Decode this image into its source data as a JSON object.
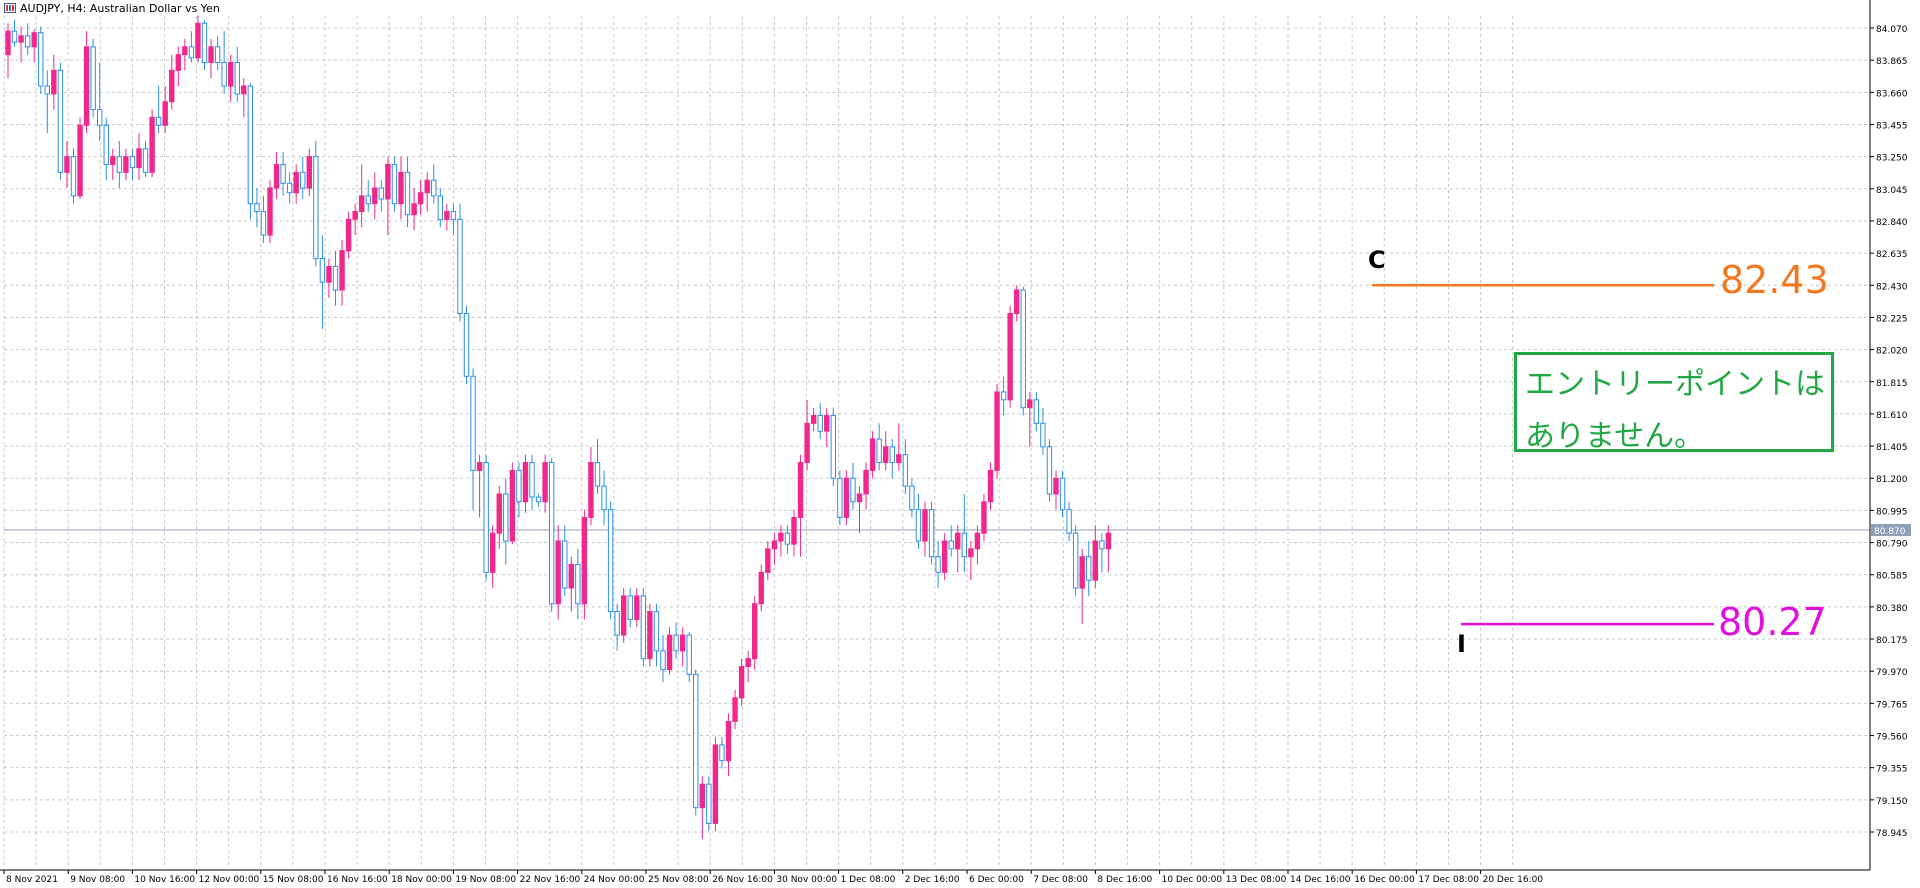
{
  "header": {
    "symbol_label": "AUDJPY, H4:  Australian Dollar vs Yen"
  },
  "colors": {
    "bull": "#f0288c",
    "bear": "#2e8fe8",
    "grid": "#c8c8c8",
    "upper_level": "#f07820",
    "lower_level": "#e010e0",
    "note_border": "#22a745"
  },
  "chart_data": {
    "type": "candlestick",
    "symbol": "AUDJPY",
    "timeframe": "H4",
    "y_range": [
      78.85,
      84.22
    ],
    "y_ticks": [
      "84.070",
      "83.865",
      "83.660",
      "83.455",
      "83.250",
      "83.045",
      "82.840",
      "82.635",
      "82.430",
      "82.225",
      "82.020",
      "81.815",
      "81.610",
      "81.405",
      "81.200",
      "80.995",
      "80.790",
      "80.585",
      "80.380",
      "80.175",
      "79.970",
      "79.765",
      "79.560",
      "79.355",
      "79.150",
      "78.945"
    ],
    "current_price": "80.870",
    "x_labels": [
      "8 Nov 2021",
      "9 Nov 08:00",
      "10 Nov 16:00",
      "12 Nov 00:00",
      "15 Nov 08:00",
      "16 Nov 16:00",
      "18 Nov 00:00",
      "19 Nov 08:00",
      "22 Nov 16:00",
      "24 Nov 00:00",
      "25 Nov 08:00",
      "26 Nov 16:00",
      "30 Nov 00:00",
      "1 Dec 08:00",
      "2 Dec 16:00",
      "6 Dec 00:00",
      "7 Dec 08:00",
      "8 Dec 16:00",
      "10 Dec 00:00",
      "13 Dec 08:00",
      "14 Dec 16:00",
      "16 Dec 00:00",
      "17 Dec 08:00",
      "20 Dec 16:00"
    ],
    "annotations": {
      "point_c": "C",
      "point_i": "I",
      "level_high": "82.43",
      "level_low": "80.27",
      "note_line1": "エントリーポイントは",
      "note_line2": "ありません。"
    },
    "levels": {
      "high": 82.43,
      "low": 80.27
    },
    "candles": [
      [
        83.9,
        84.1,
        83.75,
        84.05
      ],
      [
        84.05,
        84.12,
        83.95,
        83.98
      ],
      [
        83.98,
        84.08,
        83.85,
        84.02
      ],
      [
        84.02,
        84.1,
        83.9,
        83.95
      ],
      [
        83.95,
        84.06,
        83.85,
        84.04
      ],
      [
        84.04,
        84.08,
        83.65,
        83.7
      ],
      [
        83.7,
        83.8,
        83.4,
        83.65
      ],
      [
        83.65,
        83.9,
        83.55,
        83.8
      ],
      [
        83.8,
        83.85,
        83.1,
        83.15
      ],
      [
        83.15,
        83.35,
        83.05,
        83.25
      ],
      [
        83.25,
        83.3,
        82.95,
        83.0
      ],
      [
        83.0,
        83.5,
        82.98,
        83.45
      ],
      [
        83.45,
        84.05,
        83.4,
        83.95
      ],
      [
        83.95,
        84.0,
        83.5,
        83.55
      ],
      [
        83.55,
        83.85,
        83.35,
        83.45
      ],
      [
        83.45,
        83.5,
        83.1,
        83.2
      ],
      [
        83.2,
        83.3,
        83.1,
        83.25
      ],
      [
        83.25,
        83.35,
        83.05,
        83.15
      ],
      [
        83.15,
        83.3,
        83.1,
        83.25
      ],
      [
        83.25,
        83.3,
        83.1,
        83.18
      ],
      [
        83.18,
        83.4,
        83.1,
        83.3
      ],
      [
        83.3,
        83.35,
        83.12,
        83.15
      ],
      [
        83.15,
        83.55,
        83.12,
        83.5
      ],
      [
        83.5,
        83.7,
        83.4,
        83.45
      ],
      [
        83.45,
        83.7,
        83.4,
        83.6
      ],
      [
        83.6,
        83.9,
        83.55,
        83.8
      ],
      [
        83.8,
        83.95,
        83.7,
        83.9
      ],
      [
        83.9,
        84.0,
        83.8,
        83.95
      ],
      [
        83.95,
        84.05,
        83.85,
        83.88
      ],
      [
        83.88,
        84.15,
        83.85,
        84.1
      ],
      [
        84.1,
        84.12,
        83.8,
        83.85
      ],
      [
        83.85,
        84.0,
        83.75,
        83.95
      ],
      [
        83.95,
        84.02,
        83.8,
        83.85
      ],
      [
        83.85,
        84.05,
        83.65,
        83.7
      ],
      [
        83.7,
        83.9,
        83.6,
        83.85
      ],
      [
        83.85,
        83.95,
        83.6,
        83.65
      ],
      [
        83.65,
        83.75,
        83.5,
        83.7
      ],
      [
        83.7,
        83.72,
        82.85,
        82.95
      ],
      [
        82.95,
        83.05,
        82.8,
        82.9
      ],
      [
        82.9,
        83.0,
        82.7,
        82.75
      ],
      [
        82.75,
        83.1,
        82.7,
        83.05
      ],
      [
        83.05,
        83.28,
        82.98,
        83.2
      ],
      [
        83.2,
        83.28,
        83.0,
        83.08
      ],
      [
        83.08,
        83.15,
        82.95,
        83.02
      ],
      [
        83.02,
        83.2,
        82.95,
        83.15
      ],
      [
        83.15,
        83.25,
        82.98,
        83.05
      ],
      [
        83.05,
        83.3,
        83.0,
        83.25
      ],
      [
        83.25,
        83.35,
        82.55,
        82.6
      ],
      [
        82.6,
        82.75,
        82.15,
        82.45
      ],
      [
        82.45,
        82.6,
        82.35,
        82.55
      ],
      [
        82.55,
        82.65,
        82.3,
        82.4
      ],
      [
        82.4,
        82.72,
        82.3,
        82.65
      ],
      [
        82.65,
        82.9,
        82.6,
        82.85
      ],
      [
        82.85,
        82.95,
        82.75,
        82.9
      ],
      [
        82.9,
        83.2,
        82.8,
        83.0
      ],
      [
        83.0,
        83.1,
        82.9,
        82.95
      ],
      [
        82.95,
        83.15,
        82.85,
        83.05
      ],
      [
        83.05,
        83.1,
        82.9,
        82.98
      ],
      [
        82.98,
        83.25,
        82.75,
        83.2
      ],
      [
        83.2,
        83.25,
        82.9,
        82.95
      ],
      [
        82.95,
        83.25,
        82.85,
        83.15
      ],
      [
        83.15,
        83.25,
        82.8,
        82.88
      ],
      [
        82.88,
        83.05,
        82.78,
        82.95
      ],
      [
        82.95,
        83.1,
        82.88,
        83.02
      ],
      [
        83.02,
        83.15,
        82.9,
        83.1
      ],
      [
        83.1,
        83.2,
        82.95,
        83.0
      ],
      [
        83.0,
        83.05,
        82.8,
        82.85
      ],
      [
        82.85,
        82.95,
        82.78,
        82.9
      ],
      [
        82.9,
        82.95,
        82.75,
        82.85
      ],
      [
        82.85,
        82.95,
        82.2,
        82.25
      ],
      [
        82.25,
        82.3,
        81.8,
        81.85
      ],
      [
        81.85,
        81.9,
        81.0,
        81.25
      ],
      [
        81.25,
        81.35,
        80.95,
        81.3
      ],
      [
        81.3,
        81.35,
        80.55,
        80.6
      ],
      [
        80.6,
        80.9,
        80.5,
        80.85
      ],
      [
        80.85,
        81.15,
        80.75,
        81.1
      ],
      [
        81.1,
        81.2,
        80.65,
        80.8
      ],
      [
        80.8,
        81.3,
        80.78,
        81.25
      ],
      [
        81.25,
        81.3,
        80.95,
        81.05
      ],
      [
        81.05,
        81.35,
        80.98,
        81.3
      ],
      [
        81.3,
        81.35,
        81.0,
        81.08
      ],
      [
        81.08,
        81.1,
        81.02,
        81.05
      ],
      [
        81.05,
        81.35,
        80.98,
        81.3
      ],
      [
        81.3,
        81.33,
        80.35,
        80.4
      ],
      [
        80.4,
        80.9,
        80.3,
        80.8
      ],
      [
        80.8,
        80.9,
        80.45,
        80.5
      ],
      [
        80.5,
        80.7,
        80.35,
        80.65
      ],
      [
        80.65,
        80.75,
        80.3,
        80.4
      ],
      [
        80.4,
        81.0,
        80.3,
        80.95
      ],
      [
        80.95,
        81.4,
        80.9,
        81.3
      ],
      [
        81.3,
        81.45,
        81.1,
        81.15
      ],
      [
        81.15,
        81.25,
        80.9,
        81.0
      ],
      [
        81.0,
        81.05,
        80.3,
        80.35
      ],
      [
        80.35,
        80.4,
        80.1,
        80.2
      ],
      [
        80.2,
        80.5,
        80.15,
        80.45
      ],
      [
        80.45,
        80.5,
        80.25,
        80.3
      ],
      [
        80.3,
        80.5,
        80.25,
        80.45
      ],
      [
        80.45,
        80.5,
        80.0,
        80.05
      ],
      [
        80.05,
        80.4,
        80.0,
        80.35
      ],
      [
        80.35,
        80.4,
        80.0,
        80.1
      ],
      [
        80.1,
        80.2,
        79.9,
        79.98
      ],
      [
        79.98,
        80.25,
        79.95,
        80.2
      ],
      [
        80.2,
        80.28,
        80.05,
        80.1
      ],
      [
        80.1,
        80.25,
        80.0,
        80.2
      ],
      [
        80.2,
        80.22,
        79.9,
        79.95
      ],
      [
        79.95,
        79.98,
        79.05,
        79.1
      ],
      [
        79.1,
        79.3,
        78.9,
        79.25
      ],
      [
        79.25,
        79.3,
        78.95,
        79.0
      ],
      [
        79.0,
        79.55,
        78.95,
        79.5
      ],
      [
        79.5,
        79.55,
        79.35,
        79.4
      ],
      [
        79.4,
        79.7,
        79.3,
        79.65
      ],
      [
        79.65,
        79.85,
        79.6,
        79.8
      ],
      [
        79.8,
        80.05,
        79.75,
        80.0
      ],
      [
        80.0,
        80.1,
        79.9,
        80.05
      ],
      [
        80.05,
        80.45,
        79.98,
        80.4
      ],
      [
        80.4,
        80.65,
        80.35,
        80.6
      ],
      [
        80.6,
        80.8,
        80.55,
        80.75
      ],
      [
        80.75,
        80.85,
        80.65,
        80.8
      ],
      [
        80.8,
        80.9,
        80.7,
        80.85
      ],
      [
        80.85,
        80.9,
        80.72,
        80.78
      ],
      [
        80.78,
        81.0,
        80.7,
        80.95
      ],
      [
        80.95,
        81.35,
        80.7,
        81.3
      ],
      [
        81.3,
        81.7,
        81.25,
        81.55
      ],
      [
        81.55,
        81.65,
        81.5,
        81.6
      ],
      [
        81.6,
        81.68,
        81.45,
        81.5
      ],
      [
        81.5,
        81.65,
        81.4,
        81.6
      ],
      [
        81.6,
        81.65,
        81.15,
        81.2
      ],
      [
        81.2,
        81.25,
        80.9,
        80.95
      ],
      [
        80.95,
        81.25,
        80.9,
        81.2
      ],
      [
        81.2,
        81.3,
        81.0,
        81.05
      ],
      [
        81.05,
        81.15,
        80.85,
        81.1
      ],
      [
        81.1,
        81.3,
        81.0,
        81.25
      ],
      [
        81.25,
        81.5,
        81.2,
        81.45
      ],
      [
        81.45,
        81.55,
        81.25,
        81.3
      ],
      [
        81.3,
        81.5,
        81.25,
        81.4
      ],
      [
        81.4,
        81.45,
        81.2,
        81.3
      ],
      [
        81.3,
        81.55,
        81.25,
        81.35
      ],
      [
        81.35,
        81.45,
        81.1,
        81.15
      ],
      [
        81.15,
        81.2,
        80.95,
        81.0
      ],
      [
        81.0,
        81.1,
        80.75,
        80.8
      ],
      [
        80.8,
        81.05,
        80.7,
        81.0
      ],
      [
        81.0,
        81.05,
        80.65,
        80.7
      ],
      [
        80.7,
        80.8,
        80.5,
        80.6
      ],
      [
        80.6,
        80.85,
        80.55,
        80.8
      ],
      [
        80.8,
        80.9,
        80.7,
        80.75
      ],
      [
        80.75,
        80.9,
        80.6,
        80.85
      ],
      [
        80.85,
        81.1,
        80.6,
        80.7
      ],
      [
        80.7,
        80.8,
        80.55,
        80.75
      ],
      [
        80.75,
        80.9,
        80.65,
        80.85
      ],
      [
        80.85,
        81.1,
        80.8,
        81.05
      ],
      [
        81.05,
        81.3,
        81.0,
        81.25
      ],
      [
        81.25,
        81.8,
        81.2,
        81.75
      ],
      [
        81.75,
        81.85,
        81.6,
        81.7
      ],
      [
        81.7,
        82.3,
        81.65,
        82.25
      ],
      [
        82.25,
        82.43,
        82.2,
        82.4
      ],
      [
        82.4,
        82.42,
        81.6,
        81.65
      ],
      [
        81.65,
        81.75,
        81.4,
        81.7
      ],
      [
        81.7,
        81.75,
        81.5,
        81.55
      ],
      [
        81.55,
        81.65,
        81.35,
        81.4
      ],
      [
        81.4,
        81.45,
        81.05,
        81.1
      ],
      [
        81.1,
        81.25,
        81.0,
        81.2
      ],
      [
        81.2,
        81.25,
        80.95,
        81.0
      ],
      [
        81.0,
        81.05,
        80.8,
        80.85
      ],
      [
        80.85,
        80.9,
        80.45,
        80.5
      ],
      [
        80.5,
        80.75,
        80.27,
        80.7
      ],
      [
        80.7,
        80.8,
        80.45,
        80.55
      ],
      [
        80.55,
        80.9,
        80.5,
        80.8
      ],
      [
        80.8,
        80.85,
        80.6,
        80.75
      ],
      [
        80.75,
        80.9,
        80.6,
        80.85
      ]
    ]
  }
}
